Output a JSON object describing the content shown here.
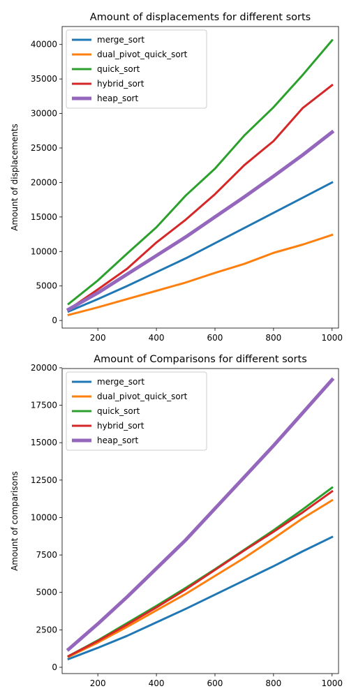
{
  "chart_data": [
    {
      "type": "line",
      "title": "Amount of displacements for different sorts",
      "xlabel": "",
      "ylabel": "Amount of displacements",
      "x": [
        100,
        200,
        300,
        400,
        500,
        600,
        700,
        800,
        900,
        1000
      ],
      "xlim": [
        78,
        1022
      ],
      "ylim": [
        -1100,
        42600
      ],
      "xticks": [
        200,
        400,
        600,
        800,
        1000
      ],
      "yticks": [
        0,
        5000,
        10000,
        15000,
        20000,
        25000,
        30000,
        35000,
        40000
      ],
      "grid": false,
      "legend_position": "top-left",
      "series": [
        {
          "name": "merge_sort",
          "color": "#1f77b4",
          "values": [
            1300,
            3100,
            5000,
            7000,
            9000,
            11200,
            13400,
            15600,
            17800,
            20000
          ]
        },
        {
          "name": "dual_pivot_quick_sort",
          "color": "#ff7f0e",
          "values": [
            800,
            1900,
            3100,
            4300,
            5500,
            6900,
            8200,
            9800,
            11000,
            12400
          ]
        },
        {
          "name": "quick_sort",
          "color": "#2ca02c",
          "values": [
            2400,
            5800,
            9700,
            13500,
            18100,
            22000,
            26800,
            30900,
            35600,
            40600
          ]
        },
        {
          "name": "hybrid_sort",
          "color": "#d62728",
          "values": [
            1600,
            4500,
            7500,
            11300,
            14600,
            18300,
            22500,
            26000,
            30800,
            34100
          ]
        },
        {
          "name": "heap_sort",
          "color": "#9467bd",
          "values": [
            1600,
            4000,
            6700,
            9400,
            12100,
            15000,
            17900,
            20900,
            24000,
            27300
          ]
        }
      ]
    },
    {
      "type": "line",
      "title": "Amount of Comparisons for different sorts",
      "xlabel": "",
      "ylabel": "Amount of comparisons",
      "x": [
        100,
        200,
        300,
        400,
        500,
        600,
        700,
        800,
        900,
        1000
      ],
      "xlim": [
        78,
        1022
      ],
      "ylim": [
        -420,
        19950
      ],
      "xticks": [
        200,
        400,
        600,
        800,
        1000
      ],
      "yticks": [
        0,
        2500,
        5000,
        7500,
        10000,
        12500,
        15000,
        17500,
        20000
      ],
      "grid": false,
      "legend_position": "top-left",
      "series": [
        {
          "name": "merge_sort",
          "color": "#1f77b4",
          "values": [
            550,
            1300,
            2100,
            3000,
            3900,
            4850,
            5800,
            6750,
            7750,
            8700
          ]
        },
        {
          "name": "dual_pivot_quick_sort",
          "color": "#ff7f0e",
          "values": [
            700,
            1650,
            2700,
            3800,
            4900,
            6100,
            7300,
            8600,
            9950,
            11150
          ]
        },
        {
          "name": "quick_sort",
          "color": "#2ca02c",
          "values": [
            750,
            1800,
            2950,
            4100,
            5300,
            6550,
            7850,
            9150,
            10550,
            12000
          ]
        },
        {
          "name": "hybrid_sort",
          "color": "#d62728",
          "values": [
            750,
            1750,
            2850,
            4000,
            5200,
            6500,
            7800,
            9050,
            10350,
            11750
          ]
        },
        {
          "name": "heap_sort",
          "color": "#9467bd",
          "values": [
            1200,
            2900,
            4700,
            6600,
            8500,
            10600,
            12700,
            14800,
            17000,
            19200
          ]
        }
      ]
    }
  ]
}
